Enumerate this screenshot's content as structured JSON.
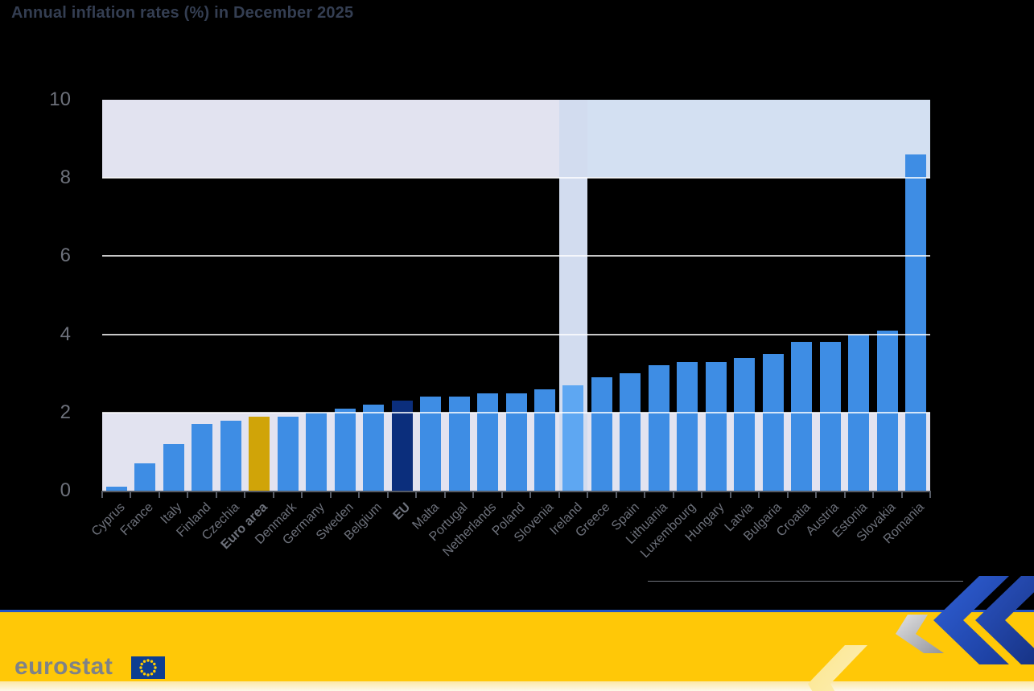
{
  "title": "Annual inflation rates (%) in December 2025",
  "chart_data": {
    "type": "bar",
    "title": "Annual inflation rates (%) in December 2025",
    "categories": [
      "Cyprus",
      "France",
      "Italy",
      "Finland",
      "Czechia",
      "Euro area",
      "Denmark",
      "Germany",
      "Sweden",
      "Belgium",
      "EU",
      "Malta",
      "Portugal",
      "Netherlands",
      "Poland",
      "Slovenia",
      "Ireland",
      "Greece",
      "Spain",
      "Lithuania",
      "Luxembourg",
      "Hungary",
      "Latvia",
      "Bulgaria",
      "Croatia",
      "Austria",
      "Estonia",
      "Slovakia",
      "Romania"
    ],
    "values": [
      0.1,
      0.7,
      1.2,
      1.7,
      1.8,
      1.9,
      1.9,
      2.0,
      2.1,
      2.2,
      2.3,
      2.4,
      2.4,
      2.5,
      2.5,
      2.6,
      2.7,
      2.9,
      3.0,
      3.2,
      3.3,
      3.3,
      3.4,
      3.5,
      3.8,
      3.8,
      4.0,
      4.1,
      8.6
    ],
    "xlabel": "",
    "ylabel": "",
    "ylim": [
      0,
      10
    ],
    "yticks": [
      0,
      2,
      4,
      6,
      8,
      10
    ],
    "gridlines": [
      2,
      4,
      6,
      8
    ],
    "grid": "on",
    "legend": "none",
    "bold_categories": [
      "Euro area",
      "EU"
    ],
    "highlighted_category": "Ireland",
    "plot_bands": [
      {
        "from": 0,
        "to": 2
      },
      {
        "from": 8,
        "to": 10
      }
    ]
  },
  "colors": {
    "bar_default": "#3e8de4",
    "bar_overrides": {
      "Euro area": "#d0a408",
      "EU": "#0b2e7c",
      "Ireland": "#5ea7f2"
    },
    "band_lavender": "#e2e3f0",
    "band_blue_right": "#d3e0f2",
    "highlight_column": "#d2dcef",
    "gridline": "rgba(255,255,255,0.78)",
    "title_text": "#343e52",
    "axis_text": "#6d717b",
    "axis_line": "#575c66",
    "separator_line": "#70747e",
    "footer_yellow": "#ffc807",
    "footer_blue_line": "#2254c8",
    "logo_gray": "#7e8288",
    "flag_blue": "#0d3e91",
    "flag_star_yellow": "#ffcc00"
  },
  "footer": {
    "logo_text": "eurostat"
  }
}
